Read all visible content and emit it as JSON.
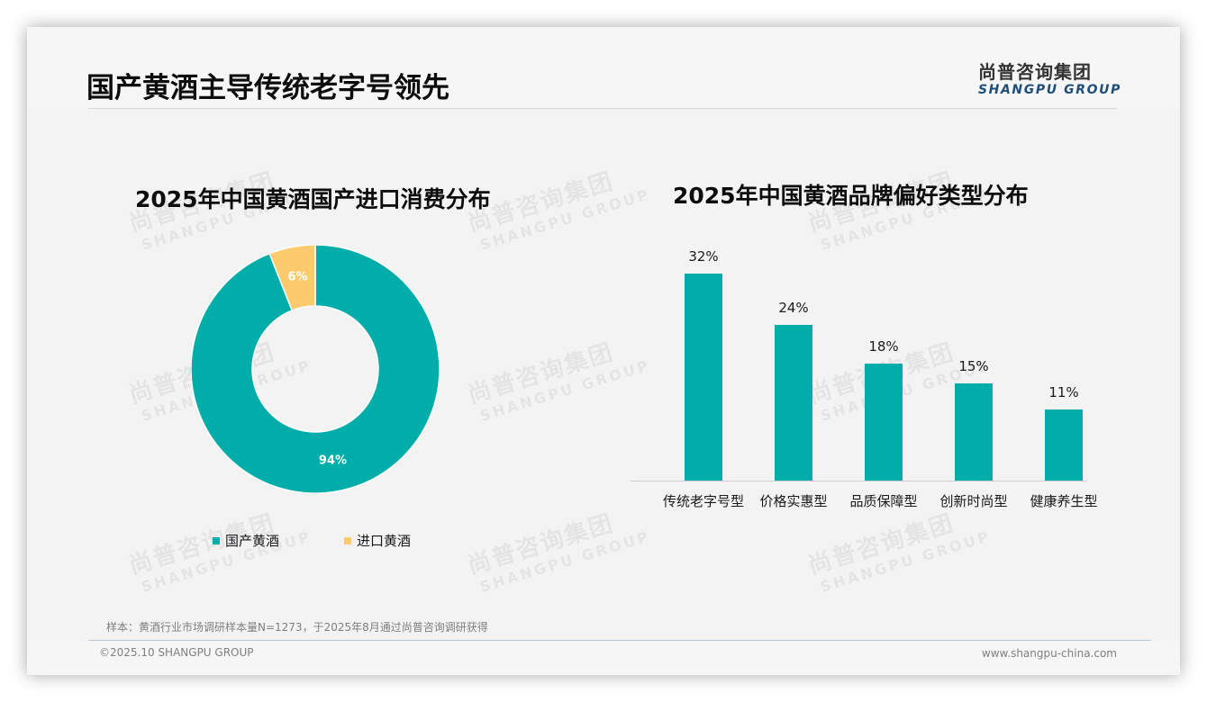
{
  "header": {
    "title": "国产黄酒主导传统老字号领先",
    "logo_cn": "尚普咨询集团",
    "logo_en": "SHANGPU GROUP"
  },
  "watermark": {
    "cn": "尚普咨询集团",
    "en": "SHANGPU GROUP"
  },
  "colors": {
    "teal": "#00ADA9",
    "yellow": "#FDCB6E",
    "background": "#F3F3F3",
    "logo_blue": "#1F4E79"
  },
  "donut": {
    "title": "2025年中国黄酒国产进口消费分布",
    "slices": [
      {
        "label": "国产黄酒",
        "value": 94,
        "display": "94%",
        "color": "#00ADA9"
      },
      {
        "label": "进口黄酒",
        "value": 6,
        "display": "6%",
        "color": "#FDCB6E"
      }
    ],
    "legend": [
      {
        "label": "国产黄酒",
        "color": "#00ADA9"
      },
      {
        "label": "进口黄酒",
        "color": "#FDCB6E"
      }
    ]
  },
  "bars": {
    "title": "2025年中国黄酒品牌偏好类型分布",
    "items": [
      {
        "category": "传统老字号型",
        "value": 32,
        "display": "32%"
      },
      {
        "category": "价格实惠型",
        "value": 24,
        "display": "24%"
      },
      {
        "category": "品质保障型",
        "value": 18,
        "display": "18%"
      },
      {
        "category": "创新时尚型",
        "value": 15,
        "display": "15%"
      },
      {
        "category": "健康养生型",
        "value": 11,
        "display": "11%"
      }
    ]
  },
  "footer": {
    "note": "样本：黄酒行业市场调研样本量N=1273，于2025年8月通过尚普咨询调研获得",
    "copyright": "©2025.10 SHANGPU GROUP",
    "website": "www.shangpu-china.com"
  },
  "chart_data": [
    {
      "type": "pie",
      "title": "2025年中国黄酒国产进口消费分布",
      "categories": [
        "国产黄酒",
        "进口黄酒"
      ],
      "values": [
        94,
        6
      ],
      "unit": "%",
      "donut": true,
      "legend_position": "bottom"
    },
    {
      "type": "bar",
      "title": "2025年中国黄酒品牌偏好类型分布",
      "categories": [
        "传统老字号型",
        "价格实惠型",
        "品质保障型",
        "创新时尚型",
        "健康养生型"
      ],
      "values": [
        32,
        24,
        18,
        15,
        11
      ],
      "unit": "%",
      "xlabel": "",
      "ylabel": "",
      "grid": false,
      "data_labels": true
    }
  ]
}
